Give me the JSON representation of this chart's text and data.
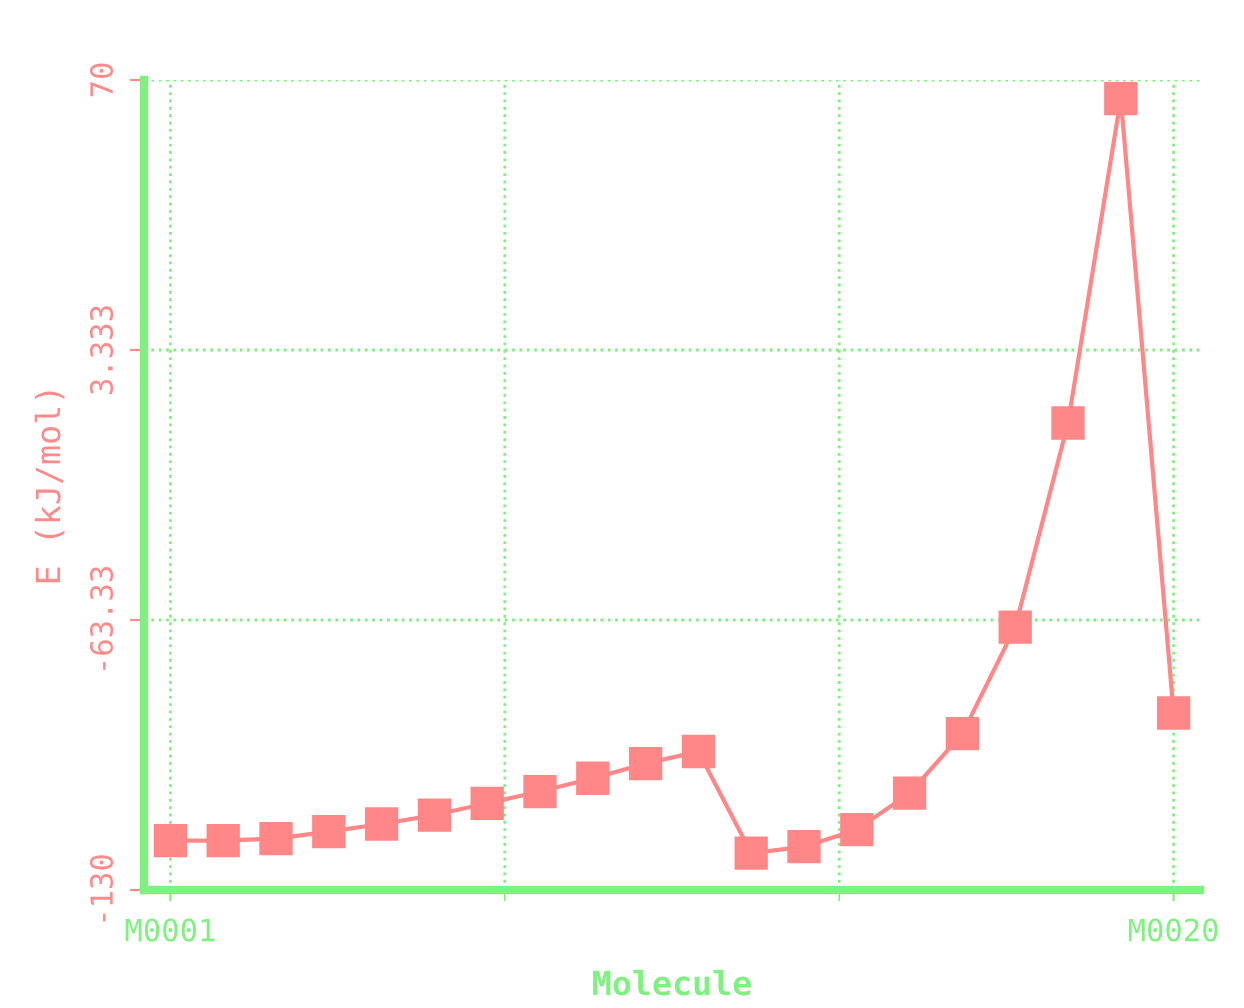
{
  "chart_data": {
    "type": "line",
    "xlabel": "Molecule",
    "ylabel": "E (kJ/mol)",
    "categories": [
      "M0001",
      null,
      null,
      null,
      null,
      null,
      null,
      null,
      null,
      null,
      null,
      null,
      null,
      null,
      null,
      null,
      null,
      null,
      null,
      "M0020"
    ],
    "series": [
      {
        "color": "#ff8787",
        "values": [
          -117.8,
          -117.8,
          -117.3,
          -115.6,
          -113.7,
          -111.5,
          -108.6,
          -105.7,
          -102.4,
          -98.8,
          -95.8,
          -120.9,
          -119.3,
          -115.1,
          -106.1,
          -91.4,
          -65.1,
          -14.7,
          65.4,
          -86.3
        ]
      }
    ],
    "ylim": [
      -130,
      70
    ],
    "yticks": [
      -130,
      {
        "value": -63.33,
        "label": "-63.33"
      },
      3.333,
      70
    ],
    "grid": true,
    "marker": "square",
    "line_style": "solid"
  }
}
